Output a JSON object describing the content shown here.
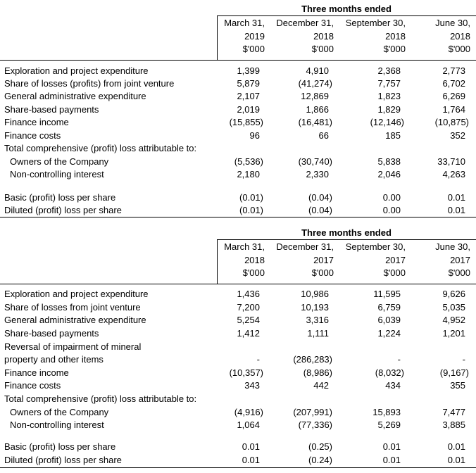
{
  "tables": [
    {
      "header": "Three months ended",
      "columns": [
        {
          "line1": "March 31,",
          "line2": "2019",
          "unit": "$'000"
        },
        {
          "line1": "December 31,",
          "line2": "2018",
          "unit": "$'000"
        },
        {
          "line1": "September 30,",
          "line2": "2018",
          "unit": "$'000"
        },
        {
          "line1": "June 30,",
          "line2": "2018",
          "unit": "$'000"
        }
      ],
      "rows": [
        {
          "label": "Exploration and project expenditure",
          "values": [
            "1,399",
            "4,910",
            "2,368",
            "2,773"
          ]
        },
        {
          "label": "Share of losses (profits) from joint venture",
          "values": [
            "5,879",
            "(41,274)",
            "7,757",
            "6,702"
          ]
        },
        {
          "label": "General administrative expenditure",
          "values": [
            "2,107",
            "12,869",
            "1,823",
            "6,269"
          ]
        },
        {
          "label": "Share-based payments",
          "values": [
            "2,019",
            "1,866",
            "1,829",
            "1,764"
          ]
        },
        {
          "label": "Finance income",
          "values": [
            "(15,855)",
            "(16,481)",
            "(12,146)",
            "(10,875)"
          ]
        },
        {
          "label": "Finance costs",
          "values": [
            "96",
            "66",
            "185",
            "352"
          ]
        },
        {
          "label": "Total comprehensive (profit) loss attributable to:"
        },
        {
          "label": "Owners of the Company",
          "values": [
            "(5,536)",
            "(30,740)",
            "5,838",
            "33,710"
          ]
        },
        {
          "label": "Non-controlling interest",
          "values": [
            "2,180",
            "2,330",
            "2,046",
            "4,263"
          ]
        },
        {
          "label": "Basic (profit) loss per share",
          "values": [
            "(0.01)",
            "(0.04)",
            "0.00",
            "0.01"
          ]
        },
        {
          "label": "Diluted (profit) loss per share",
          "values": [
            "(0.01)",
            "(0.04)",
            "0.00",
            "0.01"
          ]
        }
      ]
    },
    {
      "header": "Three months ended",
      "columns": [
        {
          "line1": "March 31,",
          "line2": "2018",
          "unit": "$'000"
        },
        {
          "line1": "December 31,",
          "line2": "2017",
          "unit": "$'000"
        },
        {
          "line1": "September 30,",
          "line2": "2017",
          "unit": "$'000"
        },
        {
          "line1": "June 30,",
          "line2": "2017",
          "unit": "$'000"
        }
      ],
      "rows": [
        {
          "label": "Exploration and project expenditure",
          "values": [
            "1,436",
            "10,986",
            "11,595",
            "9,626"
          ]
        },
        {
          "label": "Share of losses from joint venture",
          "values": [
            "7,200",
            "10,193",
            "6,759",
            "5,035"
          ]
        },
        {
          "label": "General administrative expenditure",
          "values": [
            "5,254",
            "3,316",
            "6,039",
            "4,952"
          ]
        },
        {
          "label": "Share-based payments",
          "values": [
            "1,412",
            "1,111",
            "1,224",
            "1,201"
          ]
        },
        {
          "label": "Reversal of impairment of mineral"
        },
        {
          "label": "property and other items",
          "values": [
            "-",
            "(286,283)",
            "-",
            "-"
          ]
        },
        {
          "label": "Finance income",
          "values": [
            "(10,357)",
            "(8,986)",
            "(8,032)",
            "(9,167)"
          ]
        },
        {
          "label": "Finance costs",
          "values": [
            "343",
            "442",
            "434",
            "355"
          ]
        },
        {
          "label": "Total comprehensive (profit) loss attributable to:"
        },
        {
          "label": "Owners of the Company",
          "values": [
            "(4,916)",
            "(207,991)",
            "15,893",
            "7,477"
          ]
        },
        {
          "label": "Non-controlling interest",
          "values": [
            "1,064",
            "(77,336)",
            "5,269",
            "3,885"
          ]
        },
        {
          "label": "Basic (profit) loss per share",
          "values": [
            "0.01",
            "(0.25)",
            "0.01",
            "0.01"
          ]
        },
        {
          "label": "Diluted (profit) loss per share",
          "values": [
            "0.01",
            "(0.24)",
            "0.01",
            "0.01"
          ]
        }
      ]
    }
  ]
}
